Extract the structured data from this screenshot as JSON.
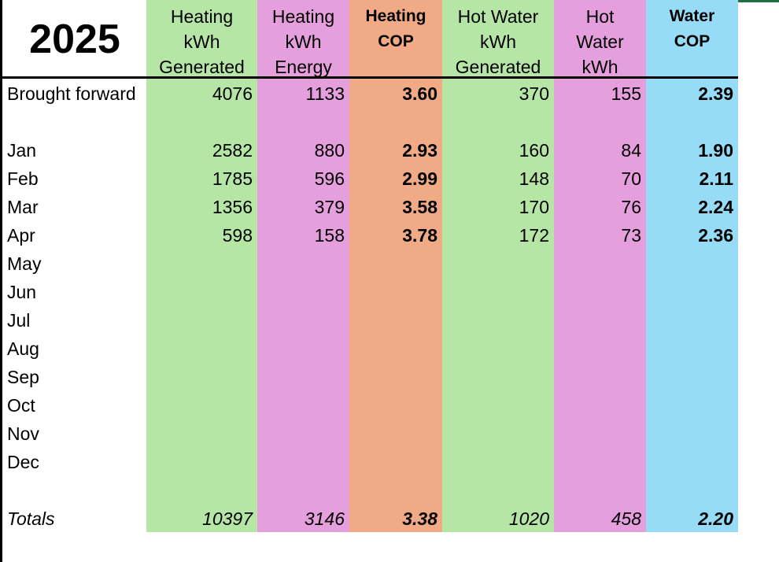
{
  "title": "2025",
  "columns": [
    {
      "lines": [
        "Heating",
        "kWh",
        "Generated"
      ],
      "color": "#b6e6a6",
      "bold": false
    },
    {
      "lines": [
        "Heating",
        "kWh",
        "Energy"
      ],
      "color": "#e59fdd",
      "bold": false
    },
    {
      "lines": [
        "Heating",
        "COP"
      ],
      "color": "#f0aa85",
      "bold": true
    },
    {
      "lines": [
        "Hot Water",
        "kWh",
        "Generated"
      ],
      "color": "#b6e6a6",
      "bold": false
    },
    {
      "lines": [
        "Hot",
        "Water",
        "kWh"
      ],
      "color": "#e59fdd",
      "bold": false
    },
    {
      "lines": [
        "Water",
        "COP"
      ],
      "color": "#96dcf6",
      "bold": true
    }
  ],
  "rows": [
    {
      "label": "Brought forward",
      "values": [
        "4076",
        "1133",
        "3.60",
        "370",
        "155",
        "2.39"
      ]
    },
    {
      "label": "Jan",
      "values": [
        "2582",
        "880",
        "2.93",
        "160",
        "84",
        "1.90"
      ]
    },
    {
      "label": "Feb",
      "values": [
        "1785",
        "596",
        "2.99",
        "148",
        "70",
        "2.11"
      ]
    },
    {
      "label": "Mar",
      "values": [
        "1356",
        "379",
        "3.58",
        "170",
        "76",
        "2.24"
      ]
    },
    {
      "label": "Apr",
      "values": [
        "598",
        "158",
        "3.78",
        "172",
        "73",
        "2.36"
      ]
    },
    {
      "label": "May",
      "values": [
        "",
        "",
        "",
        "",
        "",
        ""
      ]
    },
    {
      "label": "Jun",
      "values": [
        "",
        "",
        "",
        "",
        "",
        ""
      ]
    },
    {
      "label": "Jul",
      "values": [
        "",
        "",
        "",
        "",
        "",
        ""
      ]
    },
    {
      "label": "Aug",
      "values": [
        "",
        "",
        "",
        "",
        "",
        ""
      ]
    },
    {
      "label": "Sep",
      "values": [
        "",
        "",
        "",
        "",
        "",
        ""
      ]
    },
    {
      "label": "Oct",
      "values": [
        "",
        "",
        "",
        "",
        "",
        ""
      ]
    },
    {
      "label": "Nov",
      "values": [
        "",
        "",
        "",
        "",
        "",
        ""
      ]
    },
    {
      "label": "Dec",
      "values": [
        "",
        "",
        "",
        "",
        "",
        ""
      ]
    }
  ],
  "totals": {
    "label": "Totals",
    "values": [
      "10397",
      "3146",
      "3.38",
      "1020",
      "458",
      "2.20"
    ]
  }
}
